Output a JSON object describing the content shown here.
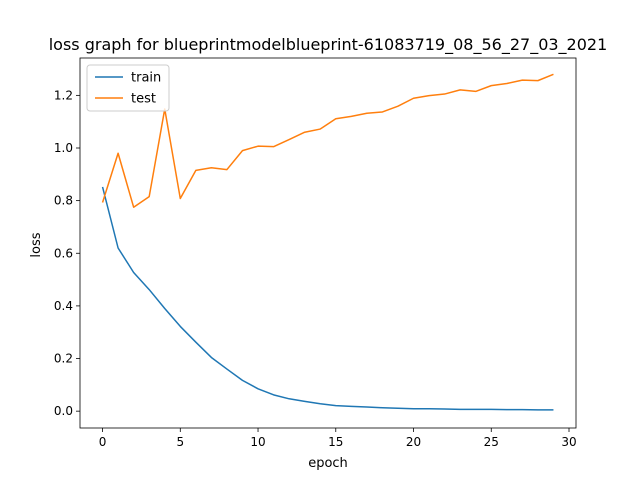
{
  "chart_data": {
    "type": "line",
    "title": "loss graph for blueprintmodelblueprint-61083719_08_56_27_03_2021",
    "xlabel": "epoch",
    "ylabel": "loss",
    "xlim": [
      -1.45,
      30.45
    ],
    "ylim": [
      -0.064,
      1.342
    ],
    "xticks": [
      0,
      5,
      10,
      15,
      20,
      25,
      30
    ],
    "yticks": [
      0.0,
      0.2,
      0.4,
      0.6,
      0.8,
      1.0,
      1.2
    ],
    "ytick_labels": [
      "0.0",
      "0.2",
      "0.4",
      "0.6",
      "0.8",
      "1.0",
      "1.2"
    ],
    "grid": false,
    "legend_position": "top-left",
    "x": [
      0,
      1,
      2,
      3,
      4,
      5,
      6,
      7,
      8,
      9,
      10,
      11,
      12,
      13,
      14,
      15,
      16,
      17,
      18,
      19,
      20,
      21,
      22,
      23,
      24,
      25,
      26,
      27,
      28,
      29
    ],
    "series": [
      {
        "name": "train",
        "color": "#1f77b4",
        "values": [
          0.852,
          0.62,
          0.527,
          0.462,
          0.39,
          0.322,
          0.262,
          0.204,
          0.16,
          0.117,
          0.085,
          0.062,
          0.047,
          0.037,
          0.028,
          0.021,
          0.018,
          0.016,
          0.013,
          0.011,
          0.009,
          0.009,
          0.008,
          0.007,
          0.007,
          0.007,
          0.006,
          0.006,
          0.005,
          0.005
        ]
      },
      {
        "name": "test",
        "color": "#ff7f0e",
        "values": [
          0.793,
          0.98,
          0.775,
          0.815,
          1.148,
          0.808,
          0.915,
          0.925,
          0.918,
          0.99,
          1.007,
          1.005,
          1.032,
          1.06,
          1.072,
          1.111,
          1.12,
          1.132,
          1.137,
          1.159,
          1.189,
          1.199,
          1.205,
          1.221,
          1.215,
          1.237,
          1.245,
          1.258,
          1.256,
          1.28
        ]
      }
    ]
  }
}
